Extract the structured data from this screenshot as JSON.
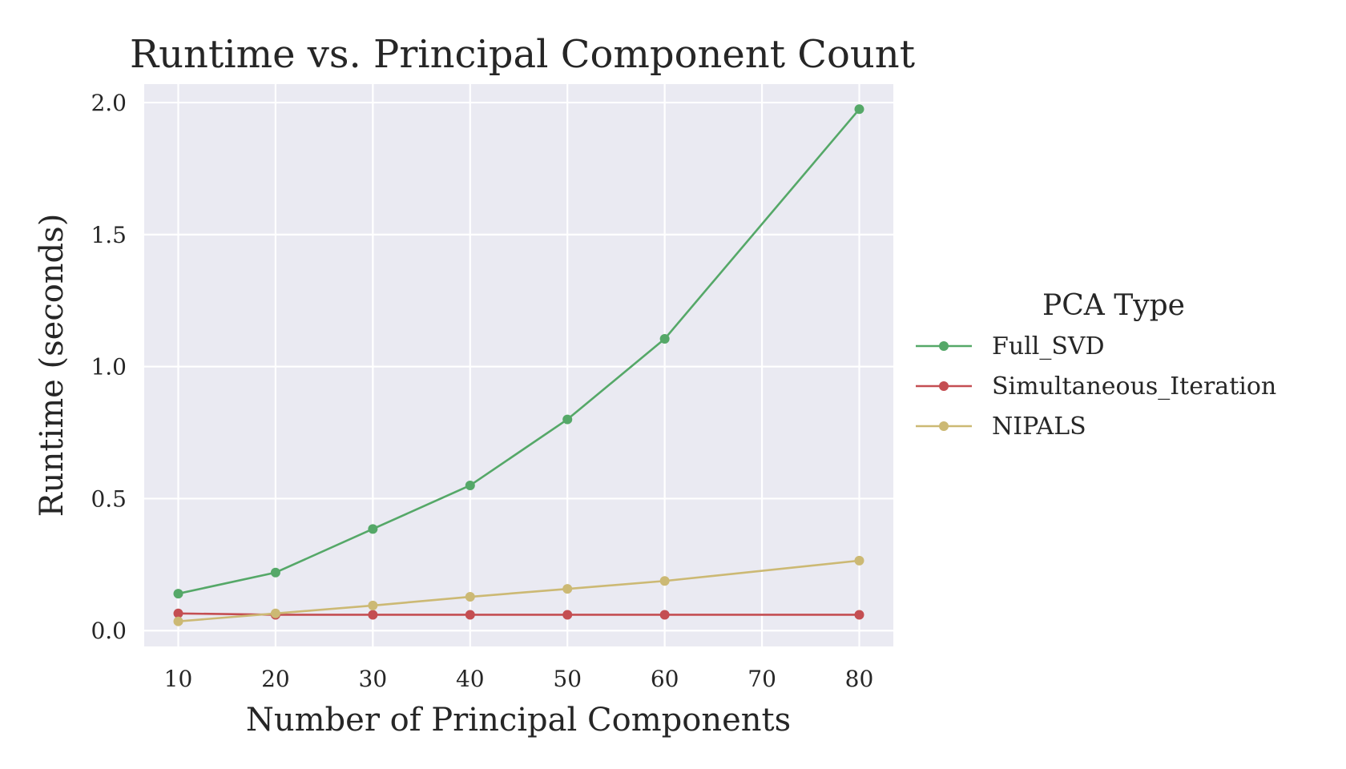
{
  "chart_data": {
    "type": "line",
    "title": "Runtime vs. Principal Component Count",
    "xlabel": "Number of Principal Components",
    "ylabel": "Runtime (seconds)",
    "x": [
      10,
      20,
      30,
      40,
      50,
      60,
      80
    ],
    "xlim": [
      6.5,
      83.5
    ],
    "ylim": [
      -0.06,
      2.07
    ],
    "xticks": [
      10,
      20,
      30,
      40,
      50,
      60,
      70,
      80
    ],
    "xtick_labels": [
      "10",
      "20",
      "30",
      "40",
      "50",
      "60",
      "70",
      "80"
    ],
    "yticks": [
      0.0,
      0.5,
      1.0,
      1.5,
      2.0
    ],
    "ytick_labels": [
      "0.0",
      "0.5",
      "1.0",
      "1.5",
      "2.0"
    ],
    "grid": true,
    "background": "#eaeaf2",
    "legend": {
      "title": "PCA Type",
      "placement": "right-outside"
    },
    "series": [
      {
        "name": "Full_SVD",
        "color": "#55a868",
        "values": [
          0.14,
          0.22,
          0.385,
          0.55,
          0.8,
          1.105,
          1.975
        ]
      },
      {
        "name": "Simultaneous_Iteration",
        "color": "#c44e52",
        "values": [
          0.065,
          0.06,
          0.06,
          0.06,
          0.06,
          0.06,
          0.06
        ]
      },
      {
        "name": "NIPALS",
        "color": "#ccb974",
        "values": [
          0.035,
          0.065,
          0.095,
          0.128,
          0.158,
          0.188,
          0.265
        ]
      }
    ]
  }
}
